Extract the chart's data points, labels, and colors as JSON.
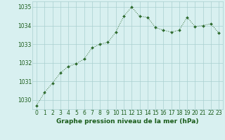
{
  "x": [
    0,
    1,
    2,
    3,
    4,
    5,
    6,
    7,
    8,
    9,
    10,
    11,
    12,
    13,
    14,
    15,
    16,
    17,
    18,
    19,
    20,
    21,
    22,
    23
  ],
  "y": [
    1029.7,
    1030.4,
    1030.9,
    1031.45,
    1031.8,
    1031.95,
    1032.2,
    1032.8,
    1033.0,
    1033.1,
    1033.65,
    1034.5,
    1035.0,
    1034.5,
    1034.45,
    1033.9,
    1033.75,
    1033.65,
    1033.75,
    1034.45,
    1033.95,
    1034.0,
    1034.1,
    1033.6
  ],
  "line_color": "#2d6a2d",
  "marker": "D",
  "marker_size": 2.0,
  "bg_color": "#d8f0f0",
  "grid_color": "#aacfcf",
  "xlabel": "Graphe pression niveau de la mer (hPa)",
  "xlabel_color": "#1a5c1a",
  "tick_color": "#1a5c1a",
  "ylim": [
    1029.5,
    1035.3
  ],
  "yticks": [
    1030,
    1031,
    1032,
    1033,
    1034,
    1035
  ],
  "xticks": [
    0,
    1,
    2,
    3,
    4,
    5,
    6,
    7,
    8,
    9,
    10,
    11,
    12,
    13,
    14,
    15,
    16,
    17,
    18,
    19,
    20,
    21,
    22,
    23
  ],
  "xlabel_fontsize": 6.5,
  "tick_fontsize": 5.5
}
